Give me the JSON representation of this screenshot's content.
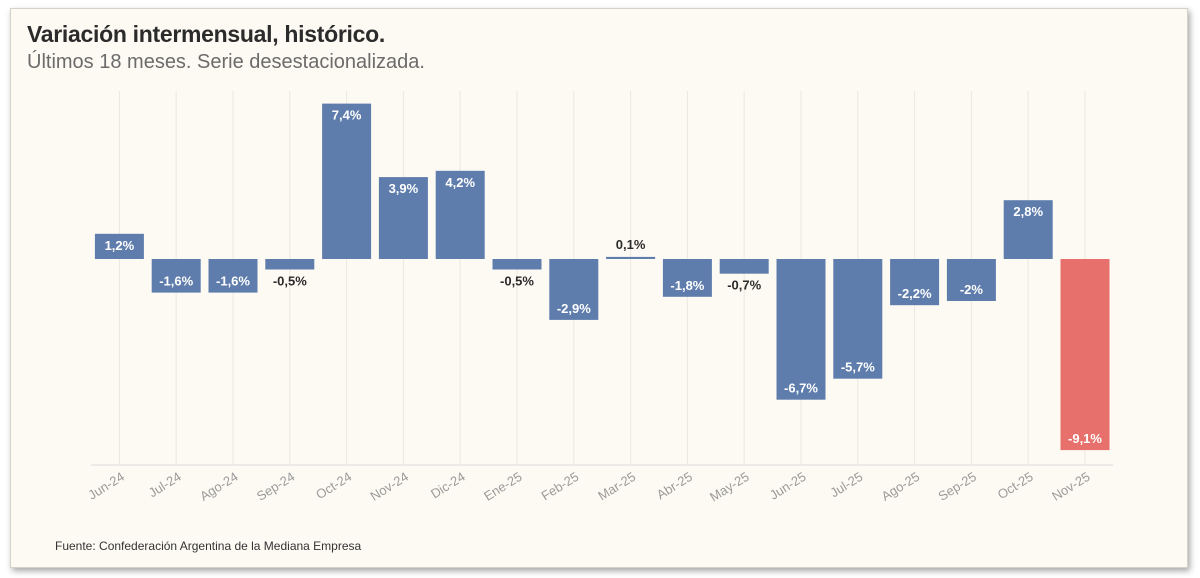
{
  "header": {
    "title": "Variación intermensual, histórico.",
    "subtitle": "Últimos 18 meses. Serie desestacionalizada."
  },
  "footer": {
    "source": "Fuente: Confederación Argentina de la Mediana Empresa"
  },
  "colors": {
    "bar": "#5f7dac",
    "highlight": "#e8706c",
    "grid": "#ece8df",
    "axis": "#dcdcdc"
  },
  "chart_data": {
    "type": "bar",
    "title": "Variación intermensual, histórico.",
    "subtitle": "Últimos 18 meses. Serie desestacionalizada.",
    "categories": [
      "Jun-24",
      "Jul-24",
      "Ago-24",
      "Sep-24",
      "Oct-24",
      "Nov-24",
      "Dic-24",
      "Ene-25",
      "Feb-25",
      "Mar-25",
      "Abr-25",
      "May-25",
      "Jun-25",
      "Jul-25",
      "Ago-25",
      "Sep-25",
      "Oct-25",
      "Nov-25"
    ],
    "values": [
      1.2,
      -1.6,
      -1.6,
      -0.5,
      7.4,
      3.9,
      4.2,
      -0.5,
      -2.9,
      0.1,
      -1.8,
      -0.7,
      -6.7,
      -5.7,
      -2.2,
      -2,
      2.8,
      -9.1
    ],
    "data_labels": [
      "1,2%",
      "-1,6%",
      "-1,6%",
      "-0,5%",
      "7,4%",
      "3,9%",
      "4,2%",
      "-0,5%",
      "-2,9%",
      "0,1%",
      "-1,8%",
      "-0,7%",
      "-6,7%",
      "-5,7%",
      "-2,2%",
      "-2%",
      "2,8%",
      "-9,1%"
    ],
    "highlight_index": 17,
    "xlabel": "",
    "ylabel": "",
    "ylim": [
      -9.9,
      8.1
    ],
    "grid": "vertical",
    "legend": "none"
  }
}
